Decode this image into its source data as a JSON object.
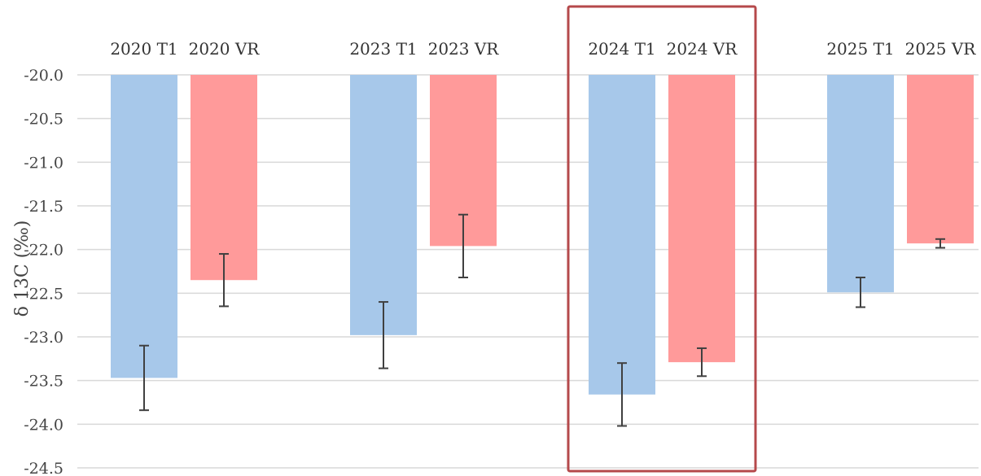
{
  "chart_data": {
    "type": "bar",
    "title": "",
    "xlabel": "",
    "ylabel": "δ 13C (‰)",
    "ylim": [
      -24.5,
      -20.0
    ],
    "yticks": [
      -20.0,
      -20.5,
      -21.0,
      -21.5,
      -22.0,
      -22.5,
      -23.0,
      -23.5,
      -24.0,
      -24.5
    ],
    "categories": [
      "2020 T1",
      "2020 VR",
      "2023 T1",
      "2023 VR",
      "2024 T1",
      "2024 VR",
      "2025 T1",
      "2025 VR"
    ],
    "values": [
      -23.47,
      -22.35,
      -22.98,
      -21.96,
      -23.66,
      -23.29,
      -22.49,
      -21.93
    ],
    "error": [
      0.37,
      0.3,
      0.38,
      0.36,
      0.36,
      0.16,
      0.17,
      0.05
    ],
    "group_type": [
      "T1",
      "VR",
      "T1",
      "VR",
      "T1",
      "VR",
      "T1",
      "VR"
    ],
    "colors": {
      "T1": "#a7c8ea",
      "VR": "#ff9a9a",
      "highlight": "#b5494b",
      "grid": "#d9d9d9",
      "error_bar": "#404040"
    },
    "highlight_categories": [
      "2024 T1",
      "2024 VR"
    ],
    "grid": true,
    "legend": "none"
  }
}
